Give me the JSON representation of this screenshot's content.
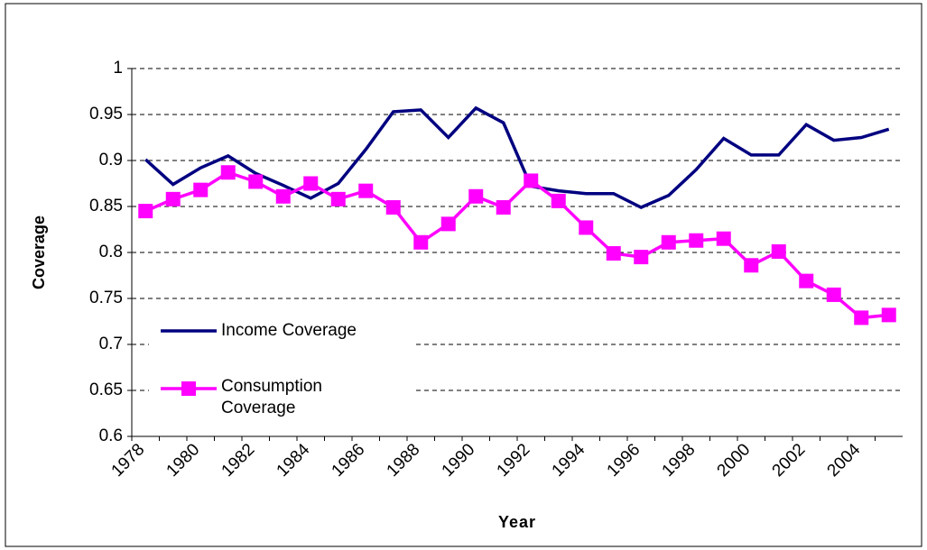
{
  "chart_data": {
    "type": "line",
    "x_label": "Year",
    "y_label": "Coverage",
    "categories": [
      "1978",
      null,
      "1980",
      null,
      "1982",
      null,
      "1984",
      null,
      "1986",
      null,
      "1988",
      null,
      "1990",
      null,
      "1992",
      null,
      "1994",
      null,
      "1996",
      null,
      "1998",
      null,
      "2000",
      null,
      "2002",
      null,
      "2004",
      null
    ],
    "series": [
      {
        "name": "Income Coverage",
        "color": "#000080",
        "marker": "none",
        "values": [
          0.901,
          0.874,
          0.892,
          0.905,
          0.886,
          0.873,
          0.859,
          0.875,
          0.912,
          0.953,
          0.955,
          0.925,
          0.957,
          0.941,
          0.872,
          0.867,
          0.864,
          0.864,
          0.849,
          0.862,
          0.89,
          0.924,
          0.906,
          0.906,
          0.939,
          0.922,
          0.925,
          0.934
        ]
      },
      {
        "name": "Consumption Coverage",
        "color": "#ff00ff",
        "marker": "square",
        "values": [
          0.845,
          0.858,
          0.868,
          0.887,
          0.877,
          0.861,
          0.875,
          0.858,
          0.867,
          0.849,
          0.811,
          0.831,
          0.861,
          0.849,
          0.878,
          0.856,
          0.827,
          0.799,
          0.795,
          0.811,
          0.813,
          0.815,
          0.786,
          0.801,
          0.769,
          0.754,
          0.729,
          0.732
        ]
      }
    ],
    "ylim": [
      0.6,
      1
    ],
    "yticks": [
      0.6,
      0.65,
      0.7,
      0.75,
      0.8,
      0.85,
      0.9,
      0.95,
      1
    ],
    "grid": true,
    "legend": "left"
  }
}
